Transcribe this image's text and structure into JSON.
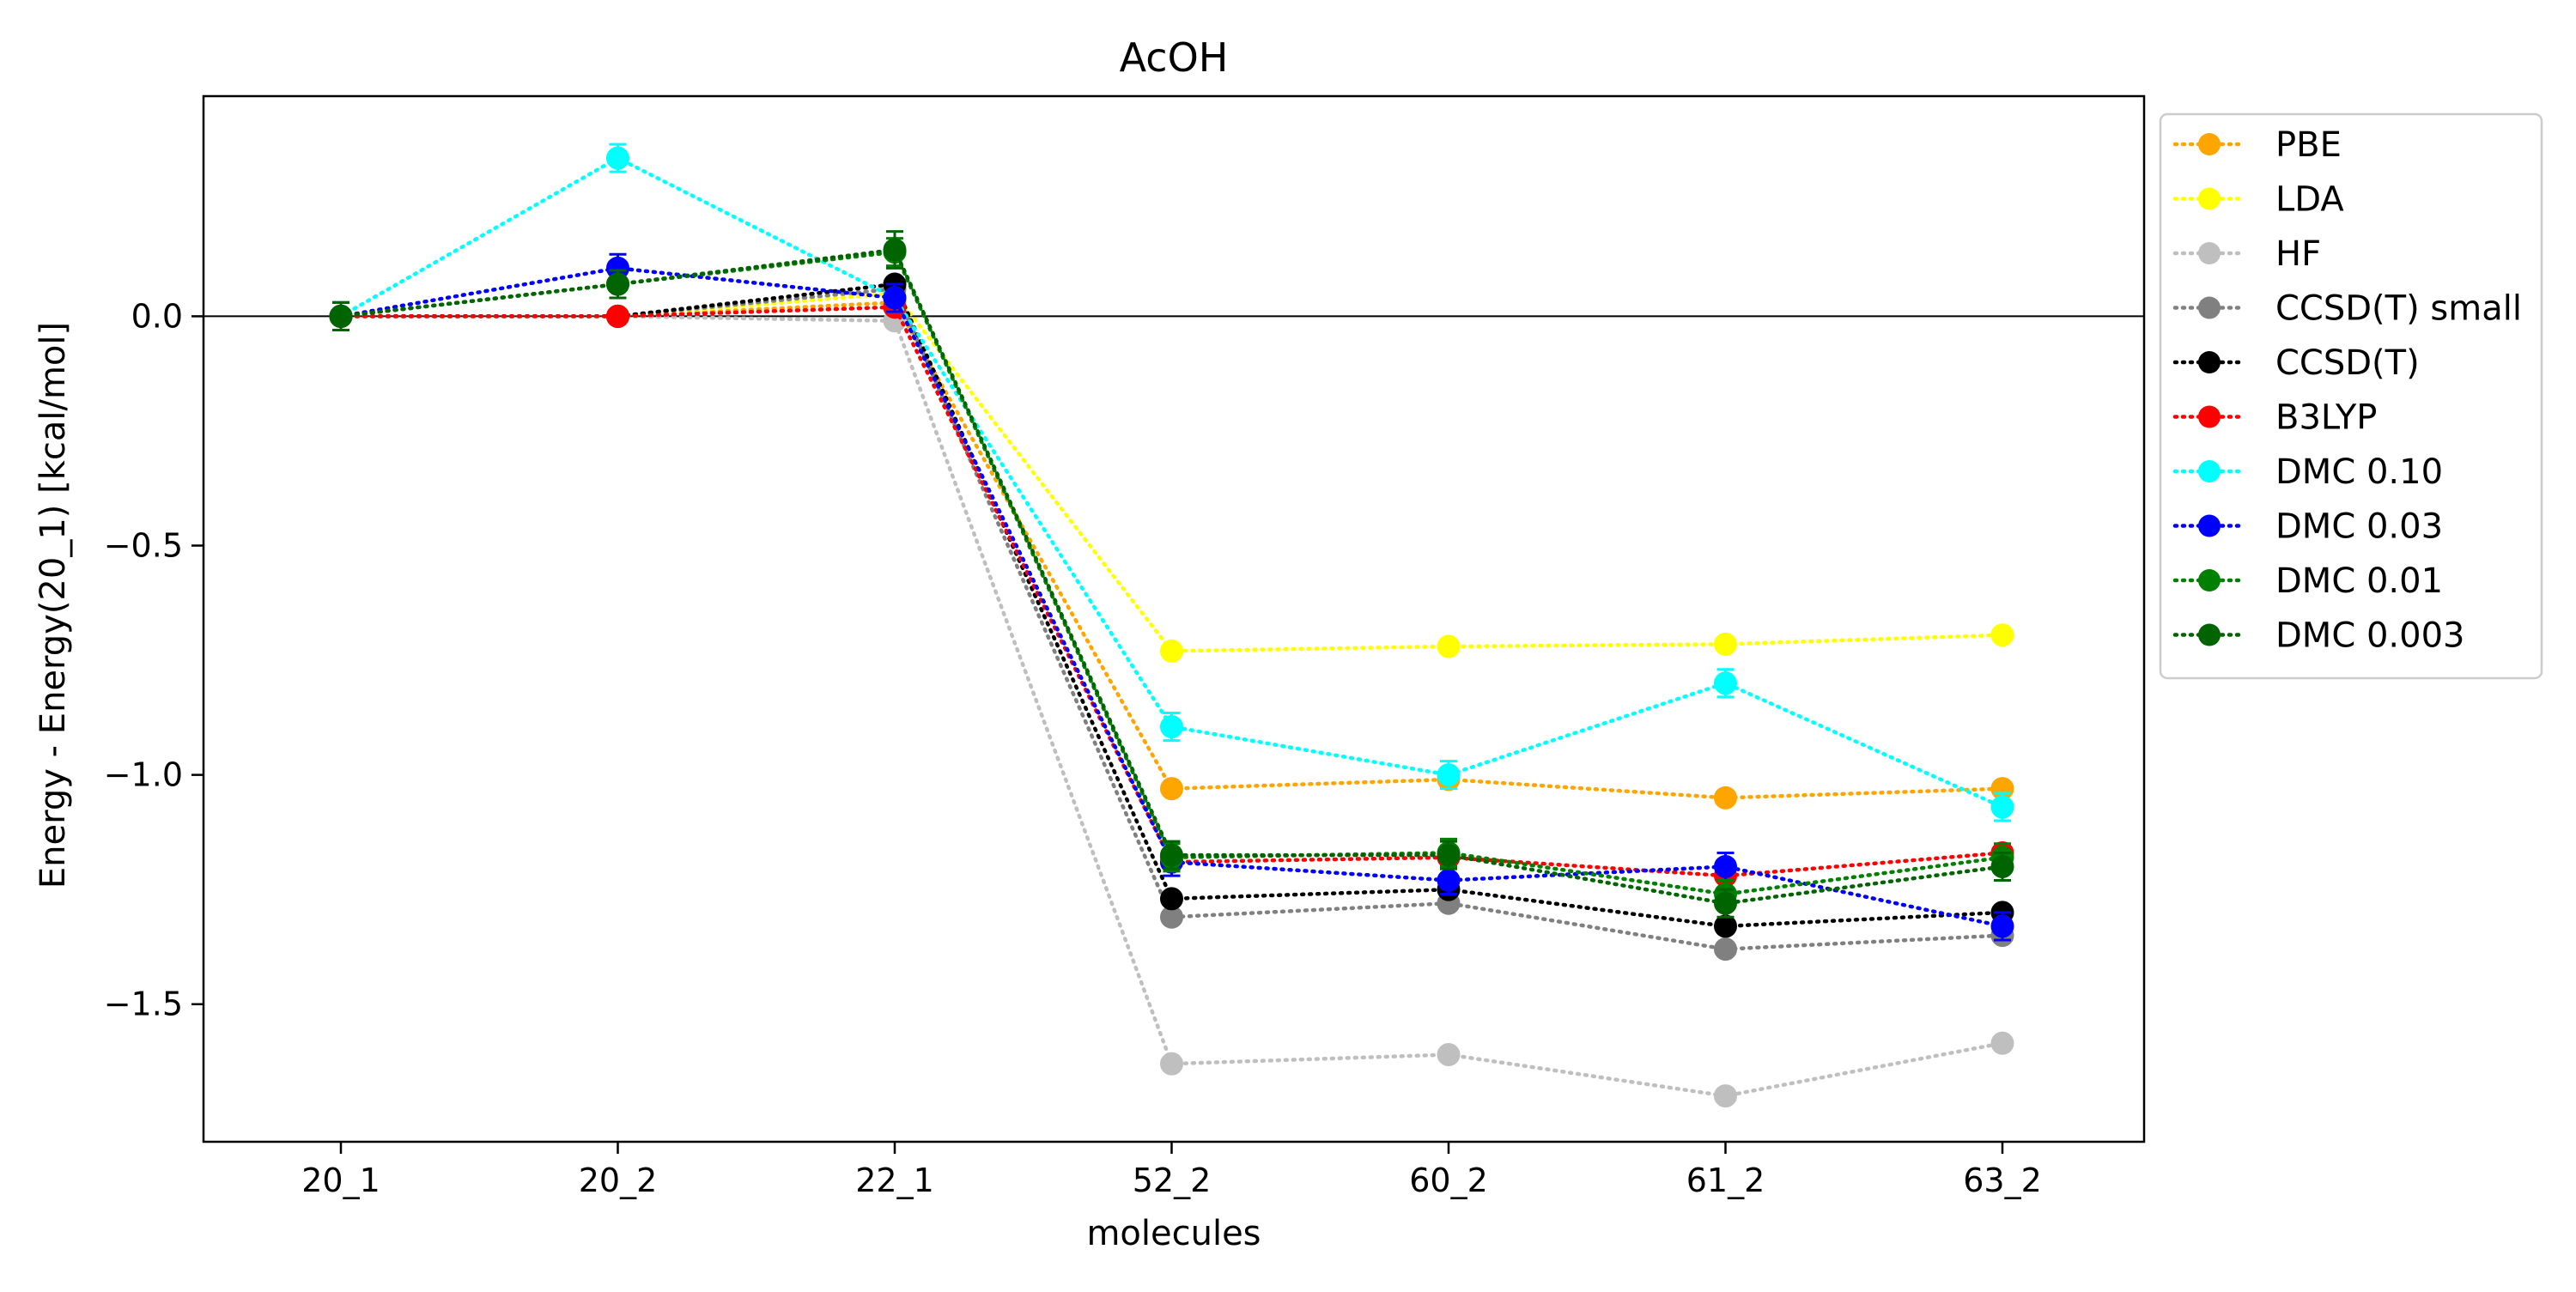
{
  "chart_data": {
    "type": "line",
    "title": "AcOH",
    "xlabel": "molecules",
    "ylabel": "Energy - Energy(20_1) [kcal/mol]",
    "categories": [
      "20_1",
      "20_2",
      "22_1",
      "52_2",
      "60_2",
      "61_2",
      "63_2"
    ],
    "ylim": [
      -1.8,
      0.48
    ],
    "yticks": [
      {
        "value": 0.0,
        "label": "0.0"
      },
      {
        "value": -0.5,
        "label": "−0.5"
      },
      {
        "value": -1.0,
        "label": "−1.0"
      },
      {
        "value": -1.5,
        "label": "−1.5"
      }
    ],
    "reference_line": 0.0,
    "grid": false,
    "legend_position": "outside-right",
    "series": [
      {
        "name": "PBE",
        "color": "#ffa500",
        "values": [
          0.0,
          0.0,
          0.03,
          -1.03,
          -1.01,
          -1.05,
          -1.03
        ]
      },
      {
        "name": "LDA",
        "color": "#ffff00",
        "values": [
          0.0,
          0.0,
          0.05,
          -0.73,
          -0.72,
          -0.715,
          -0.695
        ]
      },
      {
        "name": "HF",
        "color": "#bfbfbf",
        "values": [
          0.0,
          0.0,
          -0.01,
          -1.63,
          -1.61,
          -1.7,
          -1.585
        ]
      },
      {
        "name": "CCSD(T) small",
        "color": "#808080",
        "values": [
          0.0,
          0.0,
          0.06,
          -1.31,
          -1.28,
          -1.38,
          -1.35
        ]
      },
      {
        "name": "CCSD(T)",
        "color": "#000000",
        "values": [
          0.0,
          0.0,
          0.07,
          -1.27,
          -1.25,
          -1.33,
          -1.3
        ]
      },
      {
        "name": "B3LYP",
        "color": "#ff0000",
        "values": [
          0.0,
          0.0,
          0.02,
          -1.19,
          -1.18,
          -1.22,
          -1.17
        ]
      },
      {
        "name": "DMC 0.10",
        "color": "#00ffff",
        "values": [
          0.0,
          0.345,
          0.04,
          -0.895,
          -1.0,
          -0.8,
          -1.07
        ],
        "errors": [
          0.03,
          0.03,
          0.03,
          0.03,
          0.03,
          0.03,
          0.03
        ]
      },
      {
        "name": "DMC 0.03",
        "color": "#0000ff",
        "values": [
          0.0,
          0.105,
          0.04,
          -1.19,
          -1.23,
          -1.2,
          -1.33
        ],
        "errors": [
          0.03,
          0.03,
          0.03,
          0.03,
          0.03,
          0.03,
          0.03
        ]
      },
      {
        "name": "DMC 0.01",
        "color": "#008000",
        "values": [
          0.0,
          0.07,
          0.14,
          -1.18,
          -1.17,
          -1.26,
          -1.18
        ],
        "errors": [
          0.03,
          0.03,
          0.03,
          0.03,
          0.03,
          0.03,
          0.03
        ]
      },
      {
        "name": "DMC 0.003",
        "color": "#006400",
        "values": [
          0.0,
          0.07,
          0.145,
          -1.175,
          -1.175,
          -1.28,
          -1.2
        ],
        "errors": [
          0.03,
          0.03,
          0.04,
          0.03,
          0.03,
          0.03,
          0.03
        ]
      }
    ]
  }
}
